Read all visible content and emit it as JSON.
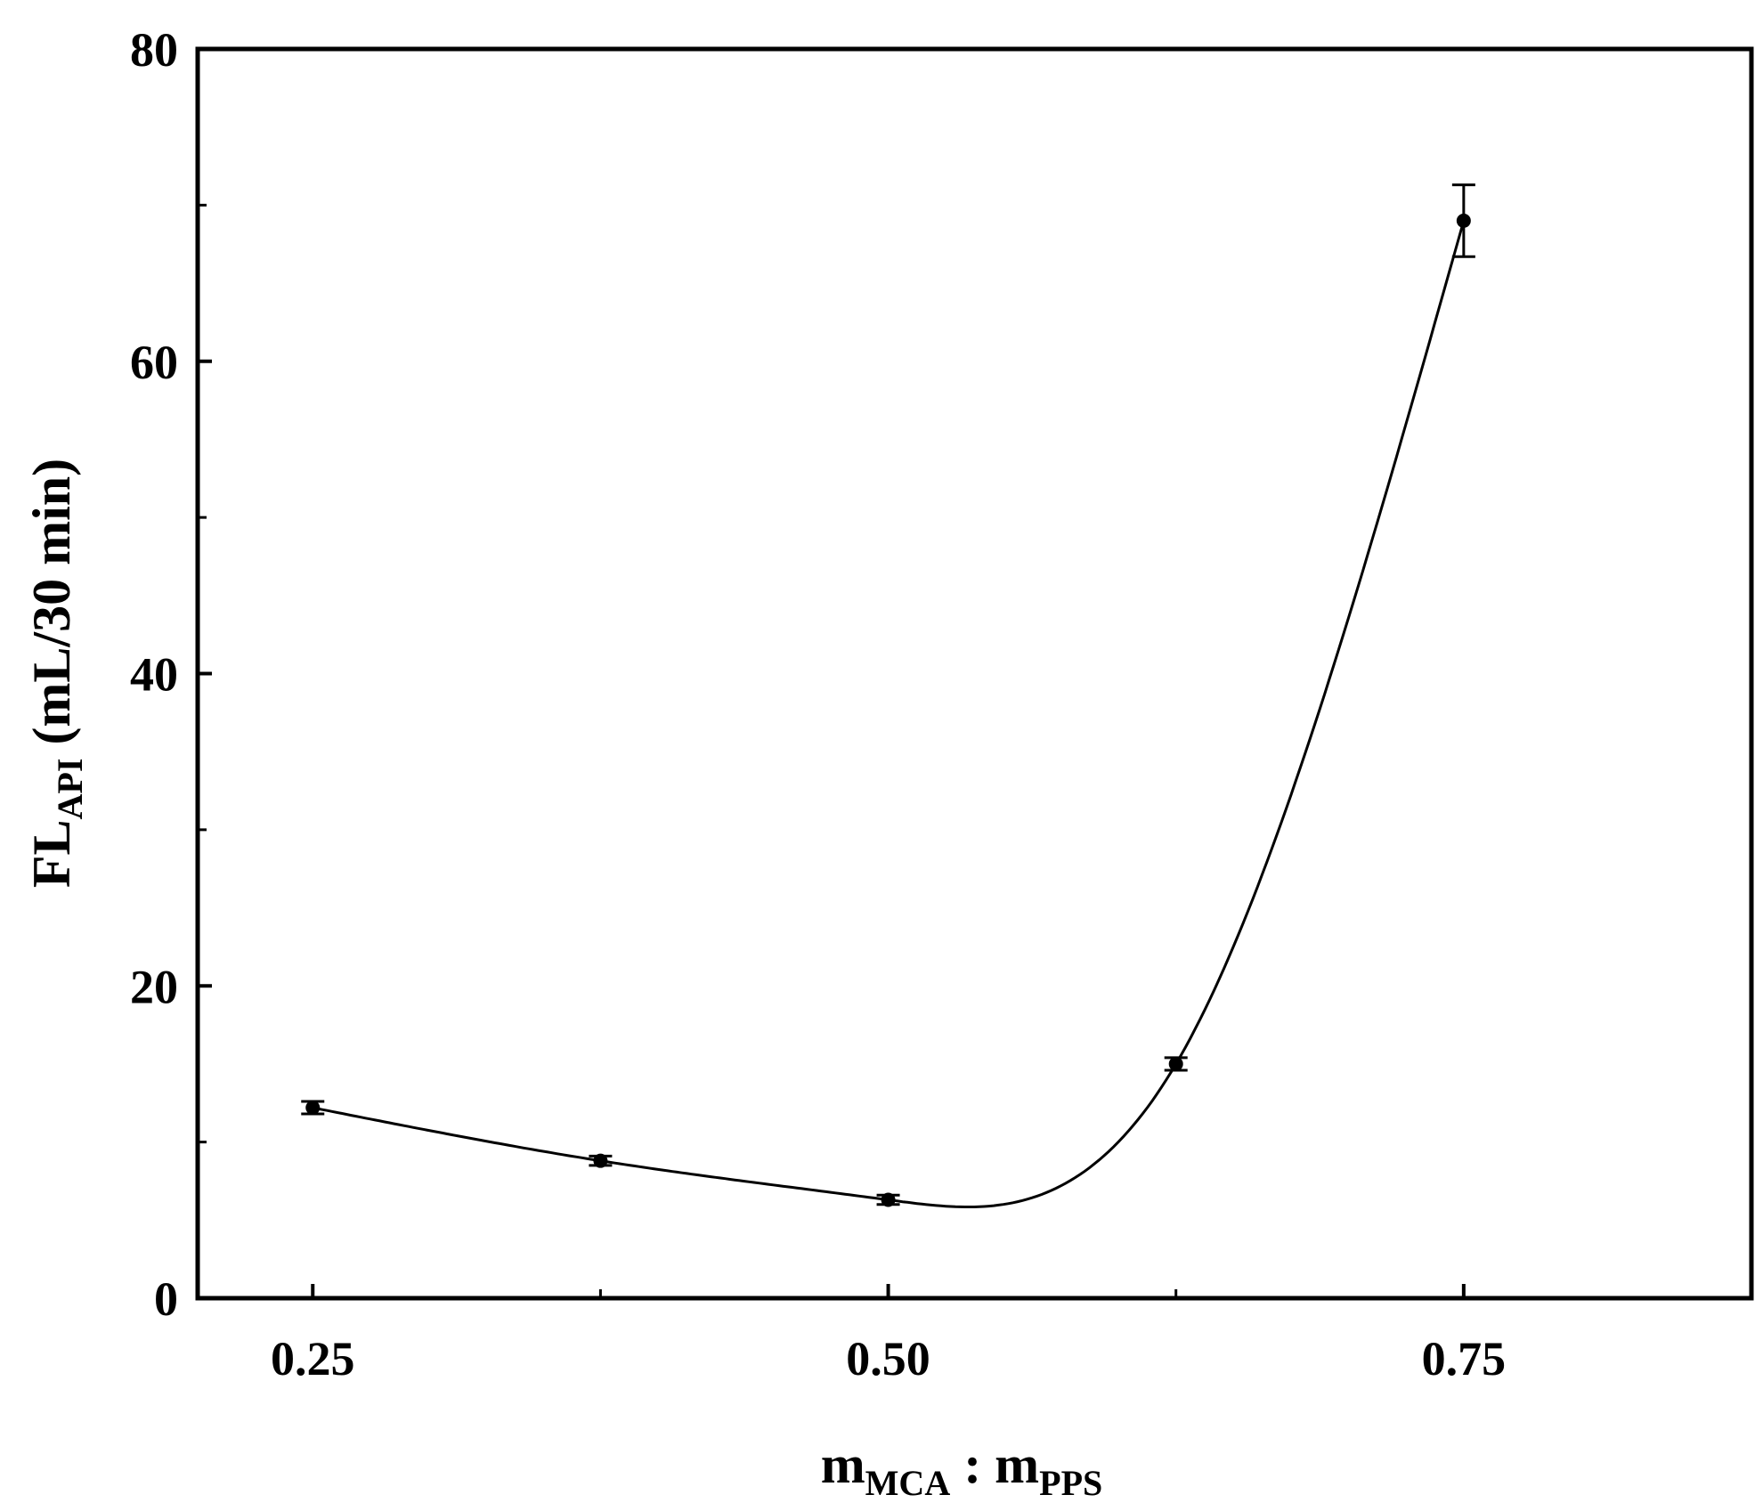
{
  "chart_data": {
    "type": "line",
    "title": "",
    "xlabel": {
      "main": "m",
      "sub1": "MCA",
      "sep": " : m",
      "sub2": "PPS"
    },
    "ylabel": {
      "main": "FL",
      "sub": "API",
      "rest": " (mL/30 min)"
    },
    "xlim": [
      0.2,
      0.875
    ],
    "ylim": [
      0,
      80
    ],
    "x_ticks": [
      0.25,
      0.5,
      0.75
    ],
    "x_tick_labels": [
      "0.25",
      "0.50",
      "0.75"
    ],
    "x_minor_ticks": [
      0.375,
      0.625
    ],
    "y_ticks": [
      0,
      20,
      40,
      60,
      80
    ],
    "y_tick_labels": [
      "0",
      "20",
      "40",
      "60",
      "80"
    ],
    "y_minor_ticks": [
      10,
      30,
      50,
      70
    ],
    "grid": false,
    "legend": "none",
    "line_color": "#000000",
    "series": [
      {
        "x": [
          0.25,
          0.375,
          0.5,
          0.625,
          0.75
        ],
        "y": [
          12.2,
          8.8,
          6.3,
          15.0,
          69.0
        ],
        "error": [
          0.4,
          0.3,
          0.3,
          0.4,
          2.3
        ]
      }
    ]
  }
}
